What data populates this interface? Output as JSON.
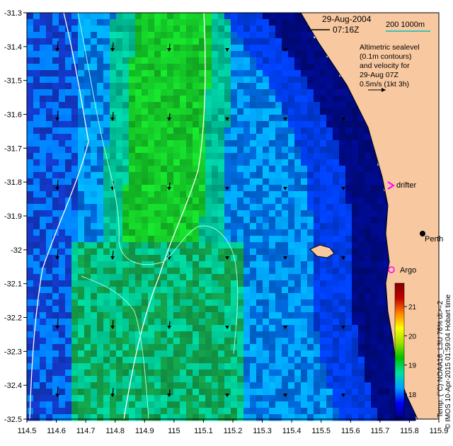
{
  "header": {
    "date": "29-Aug-2004",
    "time": "07:16Z",
    "scale_label": "200  1000m"
  },
  "legend": {
    "lines": [
      "Altimetric sealevel",
      "(0.1m contours)",
      "and velocity for",
      "29-Aug 07Z",
      "0.5m/s (1kt 3h)"
    ]
  },
  "places": {
    "drifter": "drifter",
    "perth": "Perth",
    "argo": "Argo"
  },
  "axes": {
    "x_ticks": [
      "114.5",
      "114.6",
      "114.7",
      "114.8",
      "114.9",
      "115",
      "115.1",
      "115.2",
      "115.3",
      "115.4",
      "115.5",
      "115.6",
      "115.7",
      "115.8",
      "115.9"
    ],
    "y_ticks": [
      "-31.3",
      "-31.4",
      "-31.5",
      "-31.6",
      "-31.7",
      "-31.8",
      "-31.9",
      "-32",
      "-32.1",
      "-32.2",
      "-32.3",
      "-32.4",
      "-32.5"
    ]
  },
  "colorbar": {
    "title": "Temp. (°C) NOAA16_L3U 76% dt>=2",
    "ticks": [
      "18",
      "19",
      "20",
      "21"
    ],
    "min": 17.2,
    "max": 21.8,
    "colors": [
      "#000080",
      "#0000ff",
      "#00a0ff",
      "#00e0a0",
      "#00c000",
      "#a0e000",
      "#ffff00",
      "#ff8000",
      "#c00000",
      "#800000"
    ]
  },
  "credit": "© IMOS 10-Apr-2015 01:59:04 Hobart time",
  "colors": {
    "land": "#f8c8a0",
    "ocean_deep": "#000a80",
    "contour": "#ffffff",
    "contour_faint": "#a0ffe0",
    "drifter_marker": "#ff00ff",
    "argo_marker": "#ff00ff"
  }
}
